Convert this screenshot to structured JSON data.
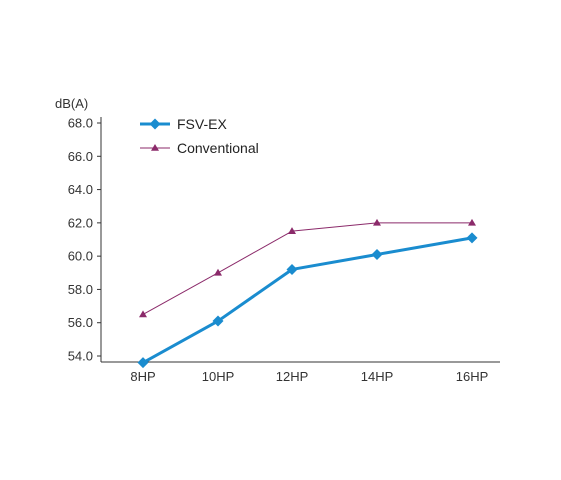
{
  "chart_data": {
    "type": "line",
    "ylabel": "dB(A)",
    "categories": [
      "8HP",
      "10HP",
      "12HP",
      "14HP",
      "16HP"
    ],
    "ylim": [
      53.6,
      68.0
    ],
    "yticks": [
      "68.0",
      "66.0",
      "64.0",
      "62.0",
      "60.0",
      "58.0",
      "56.0",
      "54.0"
    ],
    "ytick_values": [
      68,
      66,
      64,
      62,
      60,
      58,
      56,
      54
    ],
    "grid": false,
    "legend_position": "top-left",
    "series": [
      {
        "name": "FSV-EX",
        "values": [
          53.6,
          56.1,
          59.2,
          60.1,
          61.1
        ],
        "color": "#1a8ccf",
        "marker": "diamond"
      },
      {
        "name": "Conventional",
        "values": [
          56.5,
          59.0,
          61.5,
          62.0,
          62.0
        ],
        "color": "#8b2a6a",
        "marker": "triangle"
      }
    ]
  }
}
